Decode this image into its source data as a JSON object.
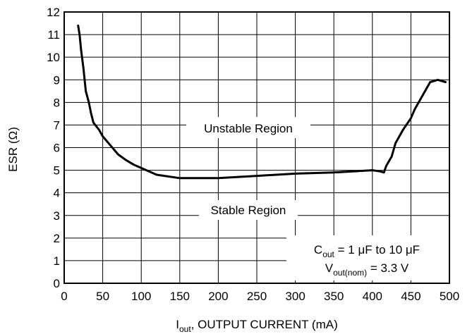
{
  "chart_data": {
    "type": "line",
    "title": "",
    "xlabel": {
      "main": "I",
      "sub": "out",
      "rest": ", OUTPUT CURRENT (mA)"
    },
    "ylabel": "ESR (Ω)",
    "xlim": [
      0,
      500
    ],
    "ylim": [
      0,
      12
    ],
    "xticks": [
      "0",
      "50",
      "100",
      "150",
      "200",
      "250",
      "300",
      "350",
      "400",
      "450",
      "500"
    ],
    "yticks": [
      "0",
      "1",
      "2",
      "3",
      "4",
      "5",
      "6",
      "7",
      "8",
      "9",
      "10",
      "11",
      "12"
    ],
    "grid": true,
    "series": [
      {
        "name": "",
        "color": "#000000",
        "x": [
          18,
          20,
          22,
          25,
          28,
          32,
          35,
          38,
          45,
          50,
          60,
          70,
          80,
          90,
          100,
          120,
          150,
          200,
          250,
          300,
          350,
          400,
          410,
          415,
          418,
          425,
          430,
          440,
          450,
          455,
          465,
          475,
          485,
          495
        ],
        "y": [
          11.4,
          11.0,
          10.3,
          9.5,
          8.5,
          8.0,
          7.5,
          7.1,
          6.8,
          6.5,
          6.1,
          5.7,
          5.45,
          5.25,
          5.1,
          4.8,
          4.65,
          4.65,
          4.75,
          4.85,
          4.9,
          5.0,
          4.95,
          4.9,
          5.2,
          5.6,
          6.2,
          6.8,
          7.3,
          7.7,
          8.3,
          8.9,
          9.0,
          8.9
        ]
      }
    ],
    "annotations": {
      "unstable": "Unstable Region",
      "stable": "Stable Region",
      "cout": {
        "main": "C",
        "sub": "out",
        "rest": " = 1 μF to 10 μF"
      },
      "vout": {
        "main": "V",
        "sub": "out(nom)",
        "rest": " = 3.3 V"
      }
    }
  }
}
